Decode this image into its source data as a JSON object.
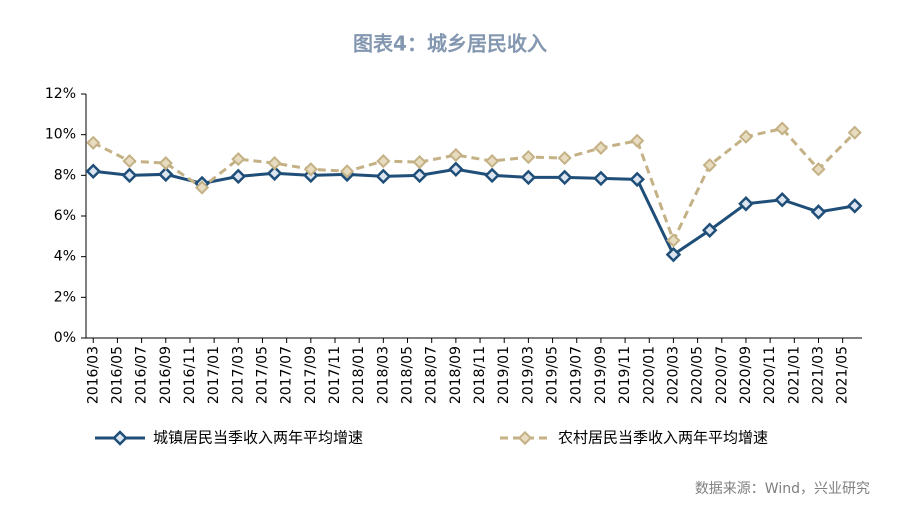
{
  "chart_data": {
    "type": "line",
    "title": "图表4：城乡居民收入",
    "source": "数据来源：Wind，兴业研究",
    "xlim": [
      -0.6,
      63.6
    ],
    "xticks": [
      {
        "value": 0,
        "label": "2016/03"
      },
      {
        "value": 2,
        "label": "2016/05"
      },
      {
        "value": 4,
        "label": "2016/07"
      },
      {
        "value": 6,
        "label": "2016/09"
      },
      {
        "value": 8,
        "label": "2016/11"
      },
      {
        "value": 10,
        "label": "2017/01"
      },
      {
        "value": 12,
        "label": "2017/03"
      },
      {
        "value": 14,
        "label": "2017/05"
      },
      {
        "value": 16,
        "label": "2017/07"
      },
      {
        "value": 18,
        "label": "2017/09"
      },
      {
        "value": 20,
        "label": "2017/11"
      },
      {
        "value": 22,
        "label": "2018/01"
      },
      {
        "value": 24,
        "label": "2018/03"
      },
      {
        "value": 26,
        "label": "2018/05"
      },
      {
        "value": 28,
        "label": "2018/07"
      },
      {
        "value": 30,
        "label": "2018/09"
      },
      {
        "value": 32,
        "label": "2018/11"
      },
      {
        "value": 34,
        "label": "2019/01"
      },
      {
        "value": 36,
        "label": "2019/03"
      },
      {
        "value": 38,
        "label": "2019/05"
      },
      {
        "value": 40,
        "label": "2019/07"
      },
      {
        "value": 42,
        "label": "2019/09"
      },
      {
        "value": 44,
        "label": "2019/11"
      },
      {
        "value": 46,
        "label": "2020/01"
      },
      {
        "value": 48,
        "label": "2020/03"
      },
      {
        "value": 50,
        "label": "2020/05"
      },
      {
        "value": 52,
        "label": "2020/07"
      },
      {
        "value": 54,
        "label": "2020/09"
      },
      {
        "value": 56,
        "label": "2020/11"
      },
      {
        "value": 58,
        "label": "2021/01"
      },
      {
        "value": 60,
        "label": "2021/03"
      },
      {
        "value": 62,
        "label": "2021/05"
      }
    ],
    "x": [
      0,
      3,
      6,
      9,
      12,
      15,
      18,
      21,
      24,
      27,
      30,
      33,
      36,
      39,
      42,
      45,
      48,
      51,
      54,
      57,
      60,
      63
    ],
    "ylim": [
      0,
      12
    ],
    "yticks": [
      {
        "value": 0,
        "label": "0%"
      },
      {
        "value": 2,
        "label": "2%"
      },
      {
        "value": 4,
        "label": "4%"
      },
      {
        "value": 6,
        "label": "6%"
      },
      {
        "value": 8,
        "label": "8%"
      },
      {
        "value": 10,
        "label": "10%"
      },
      {
        "value": 12,
        "label": "12%"
      }
    ],
    "series": [
      {
        "name": "城镇居民当季收入两年平均增速",
        "color": "#1f4e79",
        "dash": false,
        "values": [
          8.2,
          8.0,
          8.05,
          7.6,
          7.95,
          8.1,
          8.0,
          8.05,
          7.95,
          8.0,
          8.3,
          8.0,
          7.9,
          7.9,
          7.85,
          7.8,
          4.1,
          5.3,
          6.6,
          6.8,
          6.2,
          6.5
        ]
      },
      {
        "name": "农村居民当季收入两年平均增速",
        "color": "#c4b185",
        "dash": true,
        "values": [
          9.6,
          8.7,
          8.6,
          7.4,
          8.8,
          8.6,
          8.3,
          8.2,
          8.7,
          8.65,
          9.0,
          8.7,
          8.9,
          8.85,
          9.35,
          9.7,
          4.8,
          8.5,
          9.9,
          10.3,
          8.3,
          10.1
        ]
      }
    ]
  }
}
